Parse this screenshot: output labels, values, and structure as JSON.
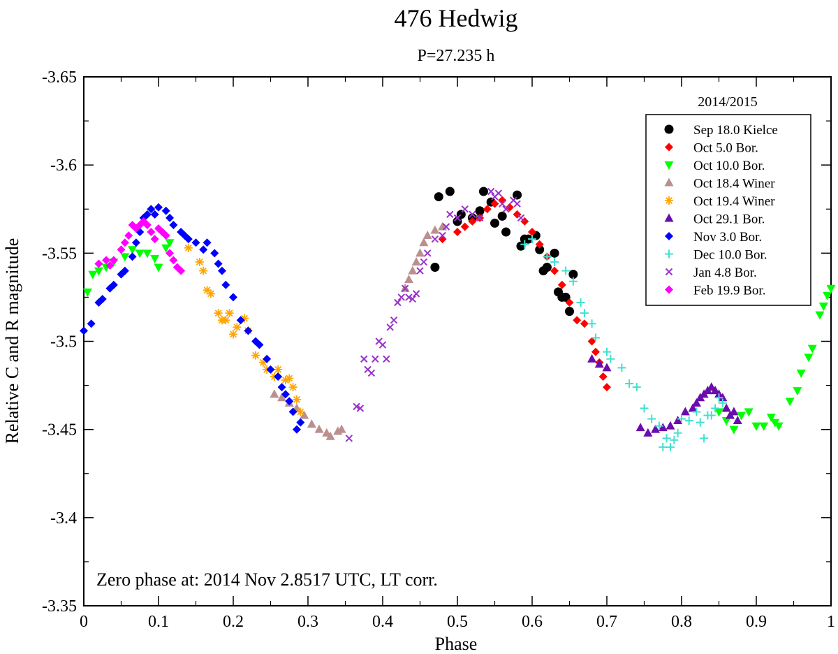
{
  "chart_data": {
    "type": "scatter",
    "title": "476 Hedwig",
    "subtitle": "P=27.235 h",
    "xlabel": "Phase",
    "ylabel": "Relative C and R magnitude",
    "xlim": [
      0,
      1
    ],
    "ylim": [
      -3.65,
      -3.35
    ],
    "y_inverted": true,
    "x_ticks": [
      "0",
      "0.1",
      "0.2",
      "0.3",
      "0.4",
      "0.5",
      "0.6",
      "0.7",
      "0.8",
      "0.9",
      "1"
    ],
    "y_ticks": [
      "-3.65",
      "-3.6",
      "-3.55",
      "-3.5",
      "-3.45",
      "-3.4",
      "-3.35"
    ],
    "legend": {
      "title": "2014/2015",
      "position": "top-right"
    },
    "annotation": "Zero phase at: 2014 Nov 2.8517 UTC, LT corr.",
    "series": [
      {
        "name": "Sep 18.0 Kielce",
        "marker": "circle",
        "color": "#000000",
        "points": [
          [
            0.47,
            -3.542
          ],
          [
            0.475,
            -3.582
          ],
          [
            0.49,
            -3.585
          ],
          [
            0.5,
            -3.568
          ],
          [
            0.505,
            -3.572
          ],
          [
            0.52,
            -3.57
          ],
          [
            0.53,
            -3.574
          ],
          [
            0.535,
            -3.585
          ],
          [
            0.545,
            -3.579
          ],
          [
            0.55,
            -3.567
          ],
          [
            0.56,
            -3.571
          ],
          [
            0.565,
            -3.562
          ],
          [
            0.58,
            -3.583
          ],
          [
            0.585,
            -3.554
          ],
          [
            0.59,
            -3.558
          ],
          [
            0.595,
            -3.558
          ],
          [
            0.605,
            -3.56
          ],
          [
            0.61,
            -3.552
          ],
          [
            0.615,
            -3.54
          ],
          [
            0.62,
            -3.542
          ],
          [
            0.63,
            -3.55
          ],
          [
            0.635,
            -3.528
          ],
          [
            0.64,
            -3.525
          ],
          [
            0.645,
            -3.525
          ],
          [
            0.65,
            -3.517
          ],
          [
            0.655,
            -3.538
          ]
        ]
      },
      {
        "name": "Oct 5.0 Bor.",
        "marker": "diamond",
        "color": "#ff0000",
        "points": [
          [
            0.48,
            -3.558
          ],
          [
            0.5,
            -3.562
          ],
          [
            0.51,
            -3.565
          ],
          [
            0.52,
            -3.568
          ],
          [
            0.53,
            -3.57
          ],
          [
            0.54,
            -3.575
          ],
          [
            0.55,
            -3.578
          ],
          [
            0.56,
            -3.58
          ],
          [
            0.57,
            -3.576
          ],
          [
            0.58,
            -3.572
          ],
          [
            0.59,
            -3.568
          ],
          [
            0.6,
            -3.562
          ],
          [
            0.61,
            -3.555
          ],
          [
            0.62,
            -3.548
          ],
          [
            0.63,
            -3.54
          ],
          [
            0.64,
            -3.532
          ],
          [
            0.65,
            -3.522
          ],
          [
            0.66,
            -3.512
          ],
          [
            0.67,
            -3.51
          ],
          [
            0.68,
            -3.5
          ],
          [
            0.685,
            -3.494
          ],
          [
            0.69,
            -3.488
          ],
          [
            0.695,
            -3.48
          ],
          [
            0.7,
            -3.474
          ]
        ]
      },
      {
        "name": "Oct 10.0 Bor.",
        "marker": "triangle-down",
        "color": "#00ff00",
        "points": [
          [
            0.005,
            -3.528
          ],
          [
            0.012,
            -3.538
          ],
          [
            0.02,
            -3.54
          ],
          [
            0.03,
            -3.542
          ],
          [
            0.04,
            -3.545
          ],
          [
            0.055,
            -3.548
          ],
          [
            0.065,
            -3.552
          ],
          [
            0.075,
            -3.55
          ],
          [
            0.085,
            -3.55
          ],
          [
            0.095,
            -3.547
          ],
          [
            0.1,
            -3.542
          ],
          [
            0.11,
            -3.553
          ],
          [
            0.115,
            -3.556
          ],
          [
            0.85,
            -3.46
          ],
          [
            0.86,
            -3.455
          ],
          [
            0.87,
            -3.45
          ],
          [
            0.88,
            -3.458
          ],
          [
            0.89,
            -3.46
          ],
          [
            0.9,
            -3.452
          ],
          [
            0.91,
            -3.452
          ],
          [
            0.92,
            -3.457
          ],
          [
            0.925,
            -3.454
          ],
          [
            0.93,
            -3.452
          ],
          [
            0.945,
            -3.466
          ],
          [
            0.955,
            -3.472
          ],
          [
            0.96,
            -3.482
          ],
          [
            0.97,
            -3.491
          ],
          [
            0.975,
            -3.496
          ],
          [
            0.985,
            -3.515
          ],
          [
            0.99,
            -3.52
          ],
          [
            0.995,
            -3.526
          ],
          [
            1.0,
            -3.53
          ]
        ]
      },
      {
        "name": "Oct 18.4 Winer",
        "marker": "triangle-up",
        "color": "#bc8f8f",
        "points": [
          [
            0.255,
            -3.47
          ],
          [
            0.265,
            -3.468
          ],
          [
            0.275,
            -3.465
          ],
          [
            0.285,
            -3.462
          ],
          [
            0.295,
            -3.458
          ],
          [
            0.305,
            -3.453
          ],
          [
            0.315,
            -3.45
          ],
          [
            0.325,
            -3.448
          ],
          [
            0.33,
            -3.446
          ],
          [
            0.34,
            -3.449
          ],
          [
            0.345,
            -3.45
          ],
          [
            0.43,
            -3.53
          ],
          [
            0.435,
            -3.535
          ],
          [
            0.44,
            -3.54
          ],
          [
            0.445,
            -3.545
          ],
          [
            0.45,
            -3.55
          ],
          [
            0.455,
            -3.556
          ],
          [
            0.46,
            -3.56
          ],
          [
            0.47,
            -3.563
          ],
          [
            0.48,
            -3.565
          ]
        ]
      },
      {
        "name": "Oct 19.4 Winer",
        "marker": "asterisk",
        "color": "#ffa500",
        "points": [
          [
            0.14,
            -3.553
          ],
          [
            0.155,
            -3.545
          ],
          [
            0.16,
            -3.54
          ],
          [
            0.165,
            -3.529
          ],
          [
            0.17,
            -3.527
          ],
          [
            0.18,
            -3.516
          ],
          [
            0.185,
            -3.512
          ],
          [
            0.19,
            -3.512
          ],
          [
            0.195,
            -3.516
          ],
          [
            0.2,
            -3.504
          ],
          [
            0.205,
            -3.508
          ],
          [
            0.215,
            -3.513
          ],
          [
            0.22,
            -3.506
          ],
          [
            0.23,
            -3.492
          ],
          [
            0.24,
            -3.488
          ],
          [
            0.245,
            -3.484
          ],
          [
            0.255,
            -3.48
          ],
          [
            0.26,
            -3.484
          ],
          [
            0.27,
            -3.478
          ],
          [
            0.275,
            -3.479
          ],
          [
            0.28,
            -3.474
          ],
          [
            0.285,
            -3.467
          ],
          [
            0.29,
            -3.46
          ]
        ]
      },
      {
        "name": "Oct 29.1 Bor.",
        "marker": "triangle-up",
        "color": "#6a0dad",
        "points": [
          [
            0.68,
            -3.49
          ],
          [
            0.69,
            -3.487
          ],
          [
            0.7,
            -3.485
          ],
          [
            0.745,
            -3.451
          ],
          [
            0.755,
            -3.448
          ],
          [
            0.765,
            -3.45
          ],
          [
            0.775,
            -3.451
          ],
          [
            0.785,
            -3.452
          ],
          [
            0.795,
            -3.455
          ],
          [
            0.805,
            -3.46
          ],
          [
            0.815,
            -3.462
          ],
          [
            0.82,
            -3.465
          ],
          [
            0.825,
            -3.468
          ],
          [
            0.83,
            -3.47
          ],
          [
            0.835,
            -3.472
          ],
          [
            0.84,
            -3.474
          ],
          [
            0.845,
            -3.472
          ],
          [
            0.85,
            -3.47
          ],
          [
            0.855,
            -3.468
          ],
          [
            0.86,
            -3.462
          ],
          [
            0.865,
            -3.458
          ],
          [
            0.87,
            -3.46
          ],
          [
            0.875,
            -3.455
          ]
        ]
      },
      {
        "name": "Nov 3.0 Bor.",
        "marker": "diamond",
        "color": "#0000ff",
        "points": [
          [
            0.0,
            -3.506
          ],
          [
            0.01,
            -3.51
          ],
          [
            0.02,
            -3.522
          ],
          [
            0.025,
            -3.524
          ],
          [
            0.035,
            -3.53
          ],
          [
            0.04,
            -3.532
          ],
          [
            0.05,
            -3.538
          ],
          [
            0.055,
            -3.54
          ],
          [
            0.065,
            -3.548
          ],
          [
            0.07,
            -3.556
          ],
          [
            0.075,
            -3.562
          ],
          [
            0.08,
            -3.57
          ],
          [
            0.085,
            -3.572
          ],
          [
            0.09,
            -3.575
          ],
          [
            0.095,
            -3.572
          ],
          [
            0.1,
            -3.576
          ],
          [
            0.11,
            -3.574
          ],
          [
            0.115,
            -3.57
          ],
          [
            0.12,
            -3.566
          ],
          [
            0.13,
            -3.562
          ],
          [
            0.135,
            -3.56
          ],
          [
            0.14,
            -3.558
          ],
          [
            0.15,
            -3.556
          ],
          [
            0.16,
            -3.552
          ],
          [
            0.165,
            -3.556
          ],
          [
            0.175,
            -3.55
          ],
          [
            0.18,
            -3.544
          ],
          [
            0.185,
            -3.54
          ],
          [
            0.19,
            -3.532
          ],
          [
            0.2,
            -3.525
          ],
          [
            0.21,
            -3.512
          ],
          [
            0.22,
            -3.506
          ],
          [
            0.23,
            -3.5
          ],
          [
            0.235,
            -3.498
          ],
          [
            0.245,
            -3.49
          ],
          [
            0.25,
            -3.484
          ],
          [
            0.26,
            -3.48
          ],
          [
            0.265,
            -3.474
          ],
          [
            0.27,
            -3.47
          ],
          [
            0.275,
            -3.466
          ],
          [
            0.28,
            -3.46
          ],
          [
            0.285,
            -3.45
          ],
          [
            0.29,
            -3.454
          ]
        ]
      },
      {
        "name": "Dec 10.0 Bor.",
        "marker": "plus",
        "color": "#40e0d0",
        "points": [
          [
            0.59,
            -3.555
          ],
          [
            0.6,
            -3.558
          ],
          [
            0.62,
            -3.548
          ],
          [
            0.63,
            -3.545
          ],
          [
            0.645,
            -3.54
          ],
          [
            0.655,
            -3.534
          ],
          [
            0.665,
            -3.522
          ],
          [
            0.67,
            -3.516
          ],
          [
            0.68,
            -3.51
          ],
          [
            0.685,
            -3.502
          ],
          [
            0.7,
            -3.494
          ],
          [
            0.705,
            -3.49
          ],
          [
            0.72,
            -3.485
          ],
          [
            0.73,
            -3.476
          ],
          [
            0.74,
            -3.474
          ],
          [
            0.75,
            -3.462
          ],
          [
            0.76,
            -3.456
          ],
          [
            0.77,
            -3.452
          ],
          [
            0.775,
            -3.44
          ],
          [
            0.78,
            -3.445
          ],
          [
            0.785,
            -3.44
          ],
          [
            0.79,
            -3.444
          ],
          [
            0.8,
            -3.456
          ],
          [
            0.81,
            -3.455
          ],
          [
            0.82,
            -3.46
          ],
          [
            0.825,
            -3.454
          ],
          [
            0.835,
            -3.458
          ],
          [
            0.84,
            -3.458
          ],
          [
            0.845,
            -3.462
          ],
          [
            0.85,
            -3.468
          ],
          [
            0.855,
            -3.465
          ],
          [
            0.83,
            -3.445
          ],
          [
            0.795,
            -3.448
          ]
        ]
      },
      {
        "name": "Jan 4.8 Bor.",
        "marker": "cross",
        "color": "#9932cc",
        "points": [
          [
            0.355,
            -3.445
          ],
          [
            0.365,
            -3.463
          ],
          [
            0.37,
            -3.462
          ],
          [
            0.375,
            -3.49
          ],
          [
            0.38,
            -3.484
          ],
          [
            0.385,
            -3.482
          ],
          [
            0.39,
            -3.49
          ],
          [
            0.395,
            -3.5
          ],
          [
            0.4,
            -3.498
          ],
          [
            0.405,
            -3.49
          ],
          [
            0.41,
            -3.508
          ],
          [
            0.415,
            -3.512
          ],
          [
            0.42,
            -3.522
          ],
          [
            0.425,
            -3.525
          ],
          [
            0.43,
            -3.53
          ],
          [
            0.435,
            -3.525
          ],
          [
            0.44,
            -3.524
          ],
          [
            0.445,
            -3.527
          ],
          [
            0.45,
            -3.54
          ],
          [
            0.455,
            -3.545
          ],
          [
            0.46,
            -3.55
          ],
          [
            0.47,
            -3.558
          ],
          [
            0.48,
            -3.56
          ],
          [
            0.485,
            -3.565
          ],
          [
            0.49,
            -3.572
          ],
          [
            0.5,
            -3.57
          ],
          [
            0.51,
            -3.575
          ],
          [
            0.52,
            -3.572
          ],
          [
            0.53,
            -3.57
          ],
          [
            0.545,
            -3.585
          ],
          [
            0.55,
            -3.582
          ],
          [
            0.555,
            -3.584
          ],
          [
            0.56,
            -3.578
          ],
          [
            0.565,
            -3.575
          ],
          [
            0.575,
            -3.58
          ],
          [
            0.58,
            -3.578
          ],
          [
            0.585,
            -3.57
          ]
        ]
      },
      {
        "name": "Feb 19.9 Bor.",
        "marker": "diamond",
        "color": "#ff00ff",
        "points": [
          [
            0.02,
            -3.544
          ],
          [
            0.03,
            -3.546
          ],
          [
            0.035,
            -3.543
          ],
          [
            0.04,
            -3.546
          ],
          [
            0.05,
            -3.552
          ],
          [
            0.055,
            -3.556
          ],
          [
            0.06,
            -3.56
          ],
          [
            0.065,
            -3.566
          ],
          [
            0.07,
            -3.564
          ],
          [
            0.075,
            -3.566
          ],
          [
            0.08,
            -3.568
          ],
          [
            0.085,
            -3.566
          ],
          [
            0.09,
            -3.562
          ],
          [
            0.095,
            -3.558
          ],
          [
            0.1,
            -3.564
          ],
          [
            0.105,
            -3.562
          ],
          [
            0.11,
            -3.56
          ],
          [
            0.115,
            -3.55
          ],
          [
            0.12,
            -3.546
          ],
          [
            0.125,
            -3.542
          ],
          [
            0.13,
            -3.54
          ]
        ]
      }
    ]
  }
}
